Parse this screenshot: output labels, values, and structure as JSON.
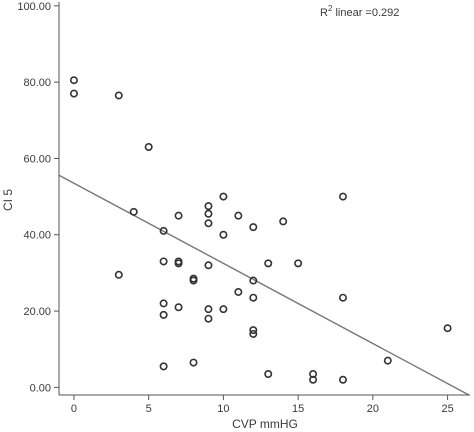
{
  "chart_data": {
    "type": "scatter",
    "title": "",
    "xlabel": "CVP mmHG",
    "ylabel": "CI 5",
    "xlim": [
      -1,
      26.5
    ],
    "ylim": [
      -2,
      101
    ],
    "x_ticks": [
      0,
      5,
      10,
      15,
      20,
      25
    ],
    "y_ticks": [
      0,
      20,
      40,
      60,
      80,
      100
    ],
    "x_tick_labels": [
      "0",
      "5",
      "10",
      "15",
      "20",
      "25"
    ],
    "y_tick_labels": [
      "0.00",
      "20.00",
      "40.00",
      "60.00",
      "80.00",
      "100.00"
    ],
    "grid": false,
    "annotation": {
      "prefix": "R",
      "superscript": "2",
      "suffix": " linear =0.292"
    },
    "fit_line": {
      "type": "linear",
      "intercept": 53.5,
      "slope": -2.1
    },
    "marker_color": "#333333",
    "line_color": "#777777",
    "points": [
      {
        "x": 0,
        "y": 80.5
      },
      {
        "x": 0,
        "y": 77
      },
      {
        "x": 3,
        "y": 76.5
      },
      {
        "x": 3,
        "y": 29.5
      },
      {
        "x": 5,
        "y": 63
      },
      {
        "x": 4,
        "y": 46
      },
      {
        "x": 6,
        "y": 41
      },
      {
        "x": 6,
        "y": 33
      },
      {
        "x": 6,
        "y": 22
      },
      {
        "x": 6,
        "y": 19
      },
      {
        "x": 6,
        "y": 5.5
      },
      {
        "x": 7,
        "y": 45
      },
      {
        "x": 7,
        "y": 33
      },
      {
        "x": 7,
        "y": 32.5
      },
      {
        "x": 7,
        "y": 21
      },
      {
        "x": 8,
        "y": 28.5
      },
      {
        "x": 8,
        "y": 28
      },
      {
        "x": 8,
        "y": 6.5
      },
      {
        "x": 9,
        "y": 47.5
      },
      {
        "x": 9,
        "y": 45.5
      },
      {
        "x": 9,
        "y": 43
      },
      {
        "x": 9,
        "y": 32
      },
      {
        "x": 9,
        "y": 20.5
      },
      {
        "x": 9,
        "y": 18
      },
      {
        "x": 10,
        "y": 50
      },
      {
        "x": 10,
        "y": 40
      },
      {
        "x": 10,
        "y": 20.5
      },
      {
        "x": 11,
        "y": 45
      },
      {
        "x": 11,
        "y": 25
      },
      {
        "x": 12,
        "y": 42
      },
      {
        "x": 12,
        "y": 28
      },
      {
        "x": 12,
        "y": 23.5
      },
      {
        "x": 12,
        "y": 15
      },
      {
        "x": 12,
        "y": 14
      },
      {
        "x": 13,
        "y": 32.5
      },
      {
        "x": 13,
        "y": 3.5
      },
      {
        "x": 14,
        "y": 43.5
      },
      {
        "x": 15,
        "y": 32.5
      },
      {
        "x": 16,
        "y": 3.5
      },
      {
        "x": 16,
        "y": 2
      },
      {
        "x": 18,
        "y": 50
      },
      {
        "x": 18,
        "y": 23.5
      },
      {
        "x": 18,
        "y": 2
      },
      {
        "x": 21,
        "y": 7
      },
      {
        "x": 25,
        "y": 15.5
      }
    ]
  }
}
